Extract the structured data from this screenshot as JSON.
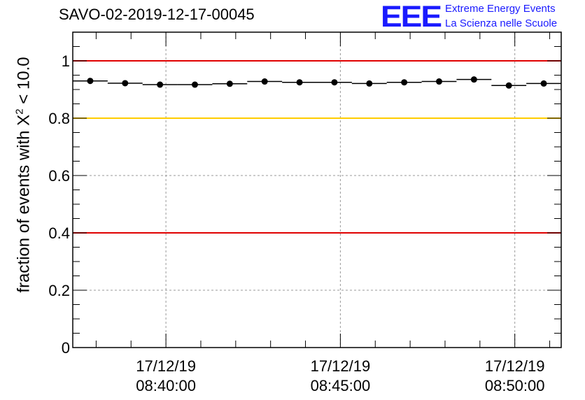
{
  "page": {
    "title": "SAVO-02-2019-12-17-00045",
    "logo": {
      "mark": "EEE",
      "line1": "Extreme Energy Events",
      "line2": "La Scienza nelle Scuole"
    },
    "colors": {
      "logo": "#1a1aff",
      "red_line": "#e00000",
      "yellow_line": "#ffcc00",
      "grid": "#999999"
    }
  },
  "chart_data": {
    "type": "scatter",
    "title": "SAVO-02-2019-12-17-00045",
    "xlabel": "",
    "ylabel_prefix": "fraction of events with ",
    "ylabel_symbol": "X",
    "ylabel_sup": "2",
    "ylabel_suffix": " < 10.0",
    "x_unit": "minutes after 08:37:20",
    "xlim": [
      0,
      14
    ],
    "ylim": [
      0,
      1.1
    ],
    "yticks": [
      0,
      0.2,
      0.4,
      0.6,
      0.8,
      1
    ],
    "ytick_labels": [
      "0",
      "0.2",
      "0.4",
      "0.6",
      "0.8",
      "1"
    ],
    "xticks": [
      {
        "x": 2.67,
        "date": "17/12/19",
        "time": "08:40:00"
      },
      {
        "x": 7.67,
        "date": "17/12/19",
        "time": "08:45:00"
      },
      {
        "x": 12.67,
        "date": "17/12/19",
        "time": "08:50:00"
      }
    ],
    "grid": true,
    "reference_lines": [
      {
        "y": 1.0,
        "color": "#e00000"
      },
      {
        "y": 0.8,
        "color": "#ffcc00"
      },
      {
        "y": 0.4,
        "color": "#e00000"
      }
    ],
    "series": [
      {
        "name": "fraction",
        "x": [
          0.5,
          1.5,
          2.5,
          3.5,
          4.5,
          5.5,
          6.5,
          7.5,
          8.5,
          9.5,
          10.5,
          11.5,
          12.5,
          13.5
        ],
        "values": [
          0.93,
          0.922,
          0.917,
          0.917,
          0.92,
          0.928,
          0.925,
          0.925,
          0.921,
          0.925,
          0.928,
          0.935,
          0.914,
          0.921
        ],
        "x_half_width": 0.5
      }
    ]
  }
}
